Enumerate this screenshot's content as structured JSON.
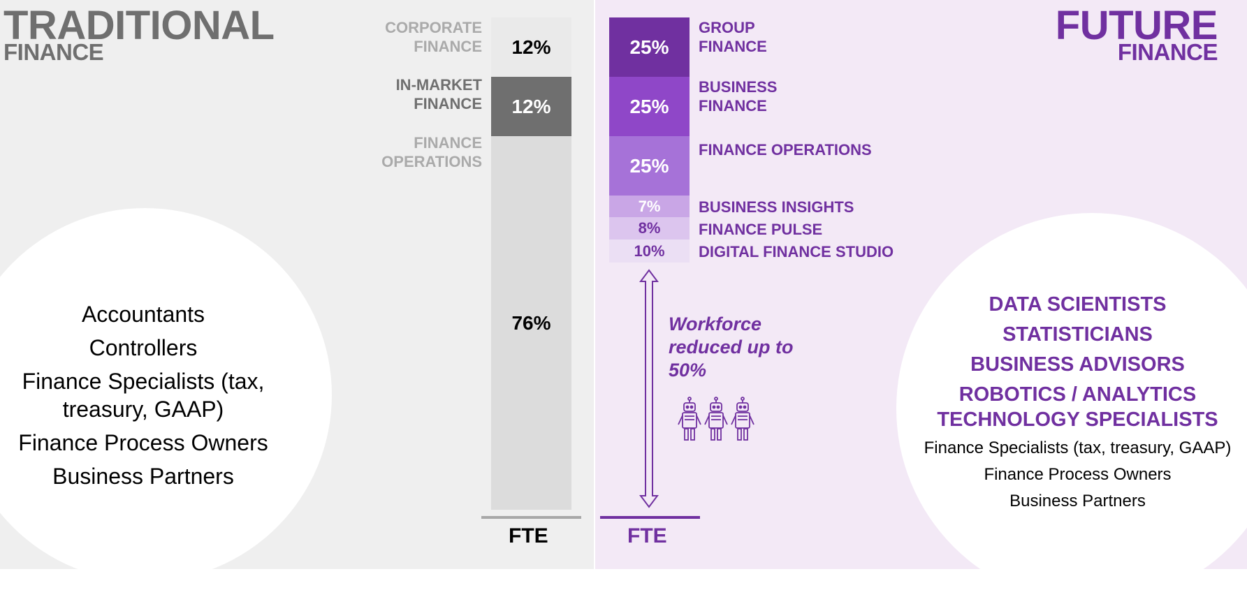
{
  "traditional": {
    "title_line1": "TRADITIONAL",
    "title_line2": "FINANCE",
    "segments": [
      {
        "label_line1": "CORPORATE",
        "label_line2": "FINANCE",
        "value": "12%"
      },
      {
        "label_line1": "IN-MARKET",
        "label_line2": "FINANCE",
        "value": "12%"
      },
      {
        "label_line1": "FINANCE",
        "label_line2": "OPERATIONS",
        "value": "76%"
      }
    ],
    "roles": [
      "Accountants",
      "Controllers",
      "Finance Specialists (tax,",
      "treasury, GAAP)",
      "Finance Process Owners",
      "Business Partners"
    ],
    "axis_label": "FTE"
  },
  "future": {
    "title_line1": "FUTURE",
    "title_line2": "FINANCE",
    "segments": [
      {
        "label_line1": "GROUP",
        "label_line2": "FINANCE",
        "value": "25%",
        "color": "#7030A0"
      },
      {
        "label_line1": "BUSINESS",
        "label_line2": "FINANCE",
        "value": "25%",
        "color": "#8F47C8"
      },
      {
        "label_line1": "FINANCE OPERATIONS",
        "label_line2": "",
        "value": "25%",
        "color": "#A672D8"
      },
      {
        "label_line1": "BUSINESS INSIGHTS",
        "label_line2": "",
        "value": "7%",
        "color": "#C9A6E6"
      },
      {
        "label_line1": "FINANCE PULSE",
        "label_line2": "",
        "value": "8%",
        "color": "#DCC5EE"
      },
      {
        "label_line1": "DIGITAL FINANCE STUDIO",
        "label_line2": "",
        "value": "10%",
        "color": "#EBDFF4"
      }
    ],
    "note_line1": "Workforce",
    "note_line2": "reduced up to",
    "note_line3": "50%",
    "key_roles": [
      "DATA SCIENTISTS",
      "STATISTICIANS",
      "BUSINESS ADVISORS",
      "ROBOTICS / ANALYTICS",
      "TECHNOLOGY SPECIALISTS"
    ],
    "other_roles": [
      "Finance Specialists (tax, treasury, GAAP)",
      "Finance Process Owners",
      "Business Partners"
    ],
    "axis_label": "FTE"
  },
  "colors": {
    "traditional_gray": "#6F6F6F",
    "light_gray": "#AAAAAA",
    "future_purple": "#7030A0",
    "left_background": "#EFEFEF",
    "right_background": "#F3E9F6"
  },
  "icons": [
    "robot-icon",
    "robot-icon",
    "robot-icon",
    "double-arrow-icon"
  ]
}
